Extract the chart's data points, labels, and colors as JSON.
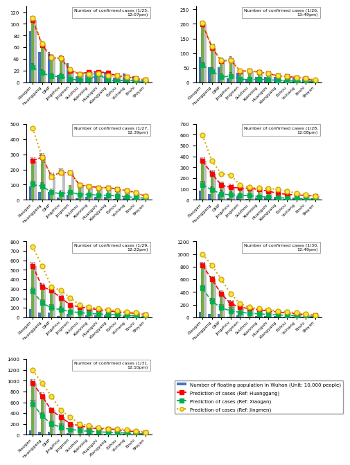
{
  "categories": [
    "Xiaogan",
    "Huanggang",
    "DMP",
    "Jingzhou",
    "Jingmen",
    "Suizhou",
    "Xianning",
    "Huangshi",
    "Xiangyang",
    "Ezhou",
    "Yichang",
    "Enshi",
    "Shiyan"
  ],
  "floating_pop": [
    88,
    52,
    52,
    13,
    33,
    10,
    18,
    18,
    18,
    8,
    15,
    10,
    5
  ],
  "subplots": [
    {
      "title": "Number of confirmed cases (1/25,\n12:07pm)",
      "ylim": [
        0,
        130
      ],
      "yticks": [
        0,
        20,
        40,
        60,
        80,
        100,
        120
      ],
      "confirmed": [
        110,
        66,
        42,
        41,
        25,
        14,
        14,
        15,
        11,
        11,
        9,
        7,
        4
      ],
      "pred_huanggang": [
        107,
        64,
        42,
        41,
        20,
        14,
        18,
        18,
        16,
        11,
        9,
        7,
        4
      ],
      "pred_xiaogan": [
        26,
        16,
        10,
        10,
        5,
        4,
        4,
        14,
        4,
        2,
        4,
        2,
        1
      ],
      "pred_jingmen": [
        110,
        66,
        42,
        41,
        22,
        14,
        14,
        15,
        11,
        11,
        9,
        7,
        4
      ]
    },
    {
      "title": "Number of confirmed cases (1/26,\n13:49pm)",
      "ylim": [
        0,
        260
      ],
      "yticks": [
        0,
        50,
        100,
        150,
        200,
        250
      ],
      "confirmed": [
        204,
        122,
        75,
        76,
        39,
        39,
        35,
        30,
        22,
        20,
        16,
        14,
        8
      ],
      "pred_huanggang": [
        199,
        119,
        72,
        76,
        38,
        39,
        35,
        30,
        22,
        20,
        16,
        14,
        2
      ],
      "pred_xiaogan": [
        58,
        38,
        18,
        21,
        10,
        10,
        10,
        8,
        7,
        5,
        4,
        3,
        1
      ],
      "pred_jingmen": [
        204,
        122,
        75,
        76,
        39,
        39,
        35,
        30,
        22,
        20,
        16,
        14,
        8
      ]
    },
    {
      "title": "Number of confirmed cases (1/27,\n12:39pm)",
      "ylim": [
        0,
        500
      ],
      "yticks": [
        0,
        100,
        200,
        300,
        400,
        500
      ],
      "confirmed": [
        257,
        282,
        50,
        40,
        97,
        90,
        80,
        80,
        71,
        60,
        48,
        35,
        22
      ],
      "pred_huanggang": [
        257,
        282,
        154,
        181,
        179,
        97,
        90,
        80,
        80,
        71,
        60,
        48,
        22
      ],
      "pred_xiaogan": [
        100,
        90,
        50,
        40,
        50,
        35,
        35,
        30,
        30,
        25,
        20,
        15,
        10
      ],
      "pred_jingmen": [
        472,
        282,
        154,
        181,
        179,
        97,
        90,
        80,
        80,
        71,
        60,
        48,
        22
      ]
    },
    {
      "title": "Number of confirmed cases (1/28,\n12:08pm)",
      "ylim": [
        0,
        700
      ],
      "yticks": [
        0,
        100,
        200,
        300,
        400,
        500,
        600,
        700
      ],
      "confirmed": [
        357,
        240,
        135,
        114,
        109,
        105,
        95,
        80,
        60,
        50,
        45,
        40,
        34
      ],
      "pred_huanggang": [
        357,
        240,
        135,
        114,
        109,
        105,
        95,
        80,
        60,
        50,
        45,
        40,
        34
      ],
      "pred_xiaogan": [
        138,
        90,
        55,
        45,
        40,
        38,
        30,
        25,
        20,
        15,
        12,
        10,
        8
      ],
      "pred_jingmen": [
        597,
        357,
        240,
        228,
        135,
        114,
        109,
        105,
        95,
        80,
        60,
        45,
        34
      ]
    },
    {
      "title": "Number of confirmed cases (1/29,\n12:22pm)",
      "ylim": [
        0,
        800
      ],
      "yticks": [
        0,
        100,
        200,
        300,
        400,
        500,
        600,
        700,
        800
      ],
      "confirmed": [
        542,
        324,
        282,
        205,
        130,
        110,
        95,
        80,
        70,
        55,
        50,
        40,
        30
      ],
      "pred_huanggang": [
        542,
        324,
        282,
        205,
        130,
        110,
        95,
        80,
        70,
        55,
        50,
        40,
        30
      ],
      "pred_xiaogan": [
        274,
        150,
        100,
        80,
        60,
        50,
        40,
        35,
        30,
        25,
        20,
        15,
        10
      ],
      "pred_jingmen": [
        745,
        542,
        324,
        282,
        205,
        130,
        110,
        95,
        80,
        70,
        55,
        50,
        30
      ]
    },
    {
      "title": "Number of confirmed cases (1/30,\n12:49pm)",
      "ylim": [
        0,
        1200
      ],
      "yticks": [
        0,
        200,
        400,
        600,
        800,
        1000,
        1200
      ],
      "confirmed": [
        820,
        599,
        371,
        214,
        160,
        138,
        120,
        100,
        85,
        70,
        55,
        45,
        31
      ],
      "pred_huanggang": [
        820,
        599,
        371,
        214,
        160,
        138,
        120,
        100,
        85,
        70,
        55,
        45,
        31
      ],
      "pred_xiaogan": [
        456,
        250,
        150,
        100,
        80,
        65,
        55,
        45,
        38,
        30,
        25,
        18,
        12
      ],
      "pred_jingmen": [
        1001,
        820,
        599,
        371,
        214,
        160,
        138,
        120,
        100,
        85,
        70,
        55,
        31
      ]
    },
    {
      "title": "Number of confirmed cases (1/31,\n12:10pm)",
      "ylim": [
        0,
        1400
      ],
      "yticks": [
        0,
        200,
        400,
        600,
        800,
        1000,
        1200,
        1400
      ],
      "confirmed": [
        957,
        712,
        451,
        327,
        203,
        170,
        133,
        113,
        113,
        95,
        75,
        60,
        45
      ],
      "pred_huanggang": [
        957,
        712,
        451,
        327,
        203,
        170,
        133,
        113,
        113,
        95,
        75,
        60,
        45
      ],
      "pred_xiaogan": [
        573,
        350,
        200,
        140,
        100,
        80,
        65,
        55,
        48,
        40,
        32,
        25,
        18
      ],
      "pred_jingmen": [
        1190,
        957,
        712,
        451,
        327,
        203,
        170,
        133,
        113,
        113,
        95,
        75,
        45
      ]
    }
  ],
  "bar_color_floating": "#4472c4",
  "bar_color_confirmed": "#70ad47",
  "bar_color_pred_huanggang": "#bfbfbf",
  "line_color_huanggang": "#ff0000",
  "line_color_xiaogan": "#00b050",
  "line_color_jingmen": "#ffff00",
  "marker_color_huanggang": "#ff0000",
  "marker_color_xiaogan": "#00b050",
  "marker_color_jingmen": "#ffff00",
  "legend_labels": [
    "Number of floating population in Wuhan (Unit: 10,000 people)",
    "Prediction of cases (Ref: Huanggang)",
    "Prediction of cases (Ref: Xiaogan)",
    "Prediction of cases (Ref: Jingmen)"
  ]
}
